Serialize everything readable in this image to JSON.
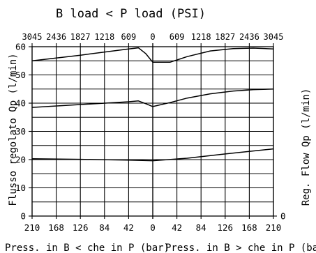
{
  "chart_data": {
    "type": "line",
    "title": "B load < P load (PSI)",
    "ylabel_left": "Flusso regolato   Qp  (l/min)",
    "ylabel_right": "Reg. Flow  Qp  (l/min)",
    "xlabel_left": "Press. in B < che in P (bar)",
    "xlabel_right": "Press. in B > che in P (bar)",
    "x_bar_ticks": [
      "210",
      "168",
      "126",
      "84",
      "42",
      "0",
      "42",
      "84",
      "126",
      "168",
      "210"
    ],
    "x_psi_ticks": [
      "3045",
      "2436",
      "1827",
      "1218",
      "609",
      "0",
      "609",
      "1218",
      "1827",
      "2436",
      "3045"
    ],
    "y_ticks": [
      "0",
      "10",
      "20",
      "30",
      "40",
      "50",
      "60"
    ],
    "y_right_zero": "0",
    "x": [
      -210,
      -168,
      -126,
      -84,
      -42,
      0,
      42,
      84,
      126,
      168,
      210
    ],
    "ylim": [
      0,
      60
    ],
    "xlim": [
      -210,
      210
    ],
    "grid": true,
    "series": [
      {
        "x": [
          -210,
          -126,
          -42,
          -25,
          -12,
          0,
          30,
          60,
          100,
          140,
          175,
          210
        ],
        "values": [
          55,
          57,
          59.2,
          59.6,
          57.5,
          54.5,
          54.5,
          56.5,
          58.5,
          59.3,
          59.5,
          59.2
        ]
      },
      {
        "x": [
          -210,
          -126,
          -42,
          -25,
          -12,
          0,
          30,
          60,
          100,
          140,
          175,
          210
        ],
        "values": [
          38.5,
          39.5,
          40.5,
          40.8,
          39.8,
          38.8,
          40.2,
          41.8,
          43.3,
          44.3,
          44.8,
          45
        ]
      },
      {
        "x": [
          -210,
          -126,
          -42,
          0,
          60,
          126,
          210
        ],
        "values": [
          20.3,
          20.1,
          19.8,
          19.6,
          20.5,
          22,
          23.8
        ]
      }
    ]
  }
}
